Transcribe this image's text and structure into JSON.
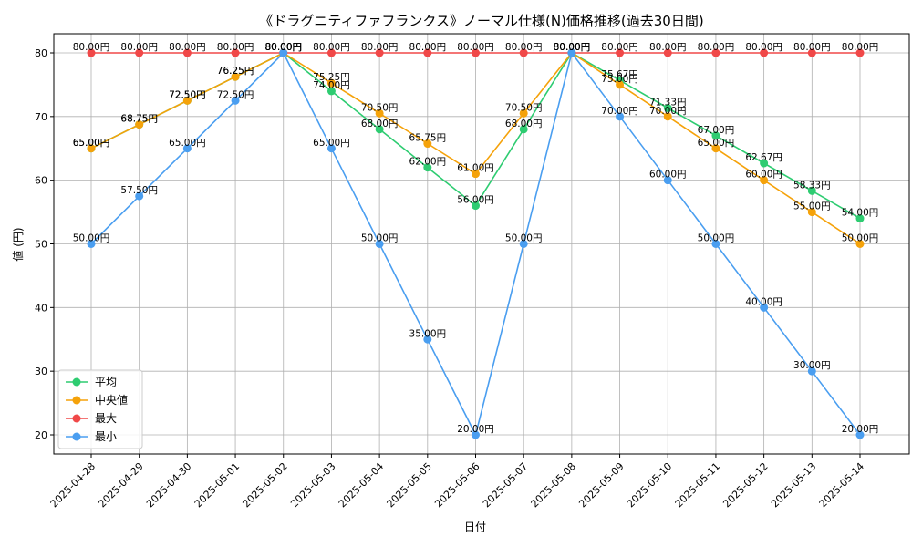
{
  "chart_data": {
    "type": "line",
    "title": "《ドラグニティファフランクス》ノーマル仕様(N)価格推移(過去30日間)",
    "xlabel": "日付",
    "ylabel": "値 (円)",
    "ylim": [
      17,
      83
    ],
    "yticks": [
      20,
      30,
      40,
      50,
      60,
      70,
      80
    ],
    "grid": true,
    "legend_position": "bottom-left",
    "value_suffix": "円",
    "categories": [
      "2025-04-28",
      "2025-04-29",
      "2025-04-30",
      "2025-05-01",
      "2025-05-02",
      "2025-05-03",
      "2025-05-04",
      "2025-05-05",
      "2025-05-06",
      "2025-05-07",
      "2025-05-08",
      "2025-05-09",
      "2025-05-10",
      "2025-05-11",
      "2025-05-12",
      "2025-05-13",
      "2025-05-14"
    ],
    "series": [
      {
        "name": "平均",
        "color": "#2ecc71",
        "values": [
          65.0,
          68.75,
          72.5,
          76.25,
          80.0,
          74.0,
          68.0,
          62.0,
          56.0,
          68.0,
          80.0,
          75.67,
          71.33,
          67.0,
          62.67,
          58.33,
          54.0
        ]
      },
      {
        "name": "中央値",
        "color": "#f5a20a",
        "values": [
          65.0,
          68.75,
          72.5,
          76.25,
          80.0,
          75.25,
          70.5,
          65.75,
          61.0,
          70.5,
          80.0,
          75.0,
          70.0,
          65.0,
          60.0,
          55.0,
          50.0
        ]
      },
      {
        "name": "最大",
        "color": "#f04848",
        "values": [
          80.0,
          80.0,
          80.0,
          80.0,
          80.0,
          80.0,
          80.0,
          80.0,
          80.0,
          80.0,
          80.0,
          80.0,
          80.0,
          80.0,
          80.0,
          80.0,
          80.0
        ]
      },
      {
        "name": "最小",
        "color": "#4a9ef0",
        "values": [
          50.0,
          57.5,
          65.0,
          72.5,
          80.0,
          65.0,
          50.0,
          35.0,
          20.0,
          50.0,
          80.0,
          70.0,
          60.0,
          50.0,
          40.0,
          30.0,
          20.0
        ]
      }
    ]
  }
}
